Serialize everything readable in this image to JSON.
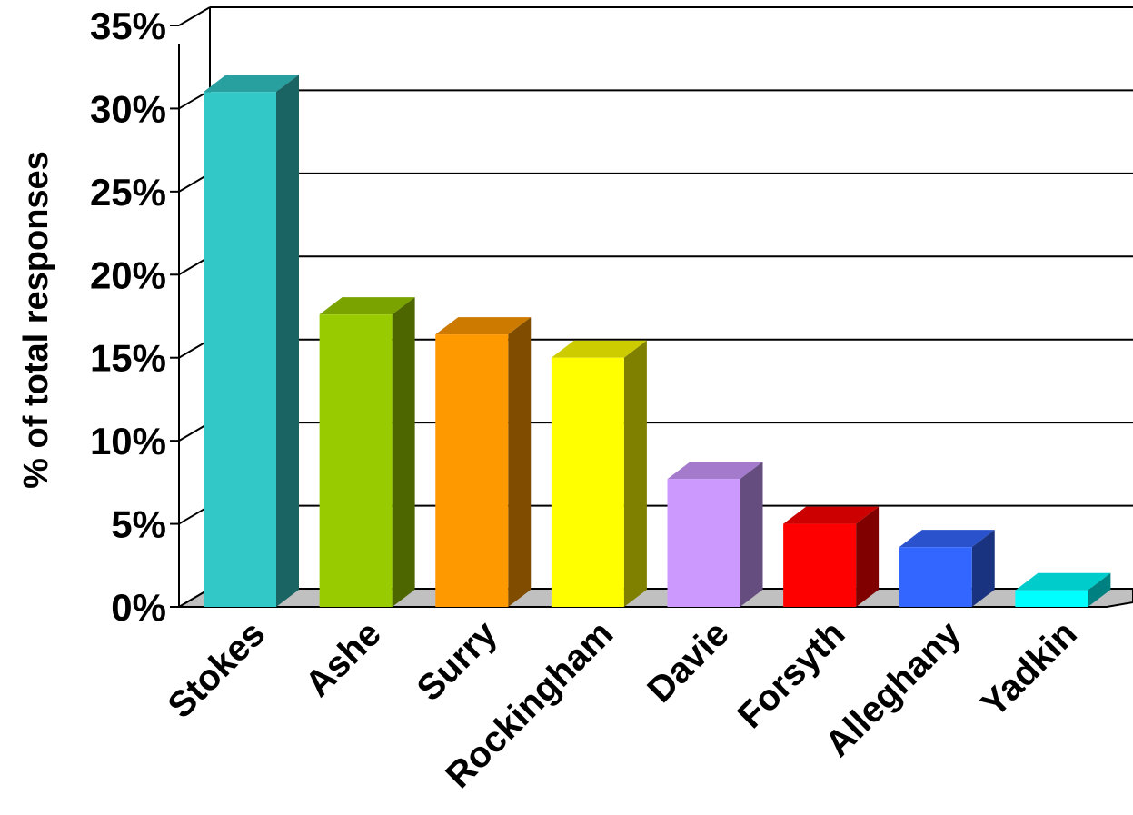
{
  "chart_data": {
    "type": "bar",
    "title": "",
    "xlabel": "",
    "ylabel": "% of total responses",
    "ylim": [
      0,
      35
    ],
    "y_ticks": [
      "0%",
      "5%",
      "10%",
      "15%",
      "20%",
      "25%",
      "30%",
      "35%"
    ],
    "grid": true,
    "three_d": true,
    "categories": [
      "Stokes",
      "Ashe",
      "Surry",
      "Rockingham",
      "Davie",
      "Forsyth",
      "Alleghany",
      "Yadkin"
    ],
    "values": [
      31,
      17.6,
      16.4,
      15,
      7.7,
      5,
      3.6,
      1
    ],
    "colors": [
      "#33c8c8",
      "#99cc00",
      "#ff9900",
      "#ffff00",
      "#cc99ff",
      "#ff0000",
      "#3366ff",
      "#00ffff"
    ]
  }
}
